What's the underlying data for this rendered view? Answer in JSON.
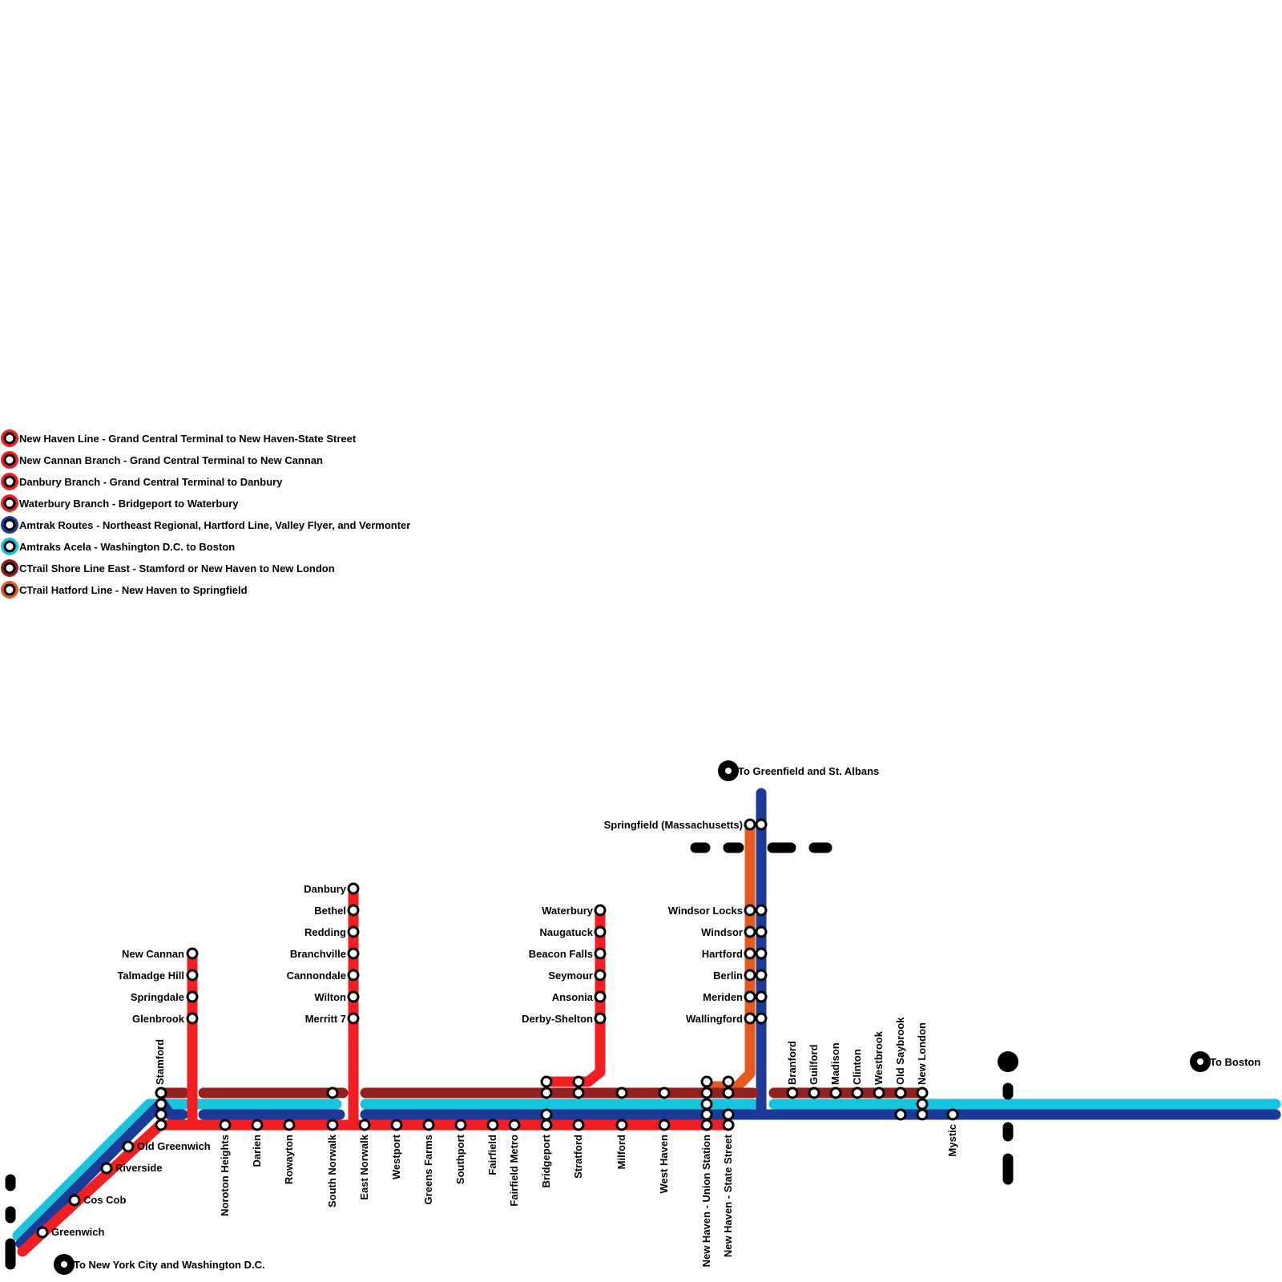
{
  "colors": {
    "new_haven_line": "#f21e22",
    "amtrak_routes": "#1b3a97",
    "amtrak_acela": "#1ac3dc",
    "shore_line_east": "#93201f",
    "hartford_line": "#e3591e",
    "marker": "#000000"
  },
  "legend": [
    {
      "label": "New Haven Line - Grand Central Terminal to New Haven-State Street",
      "color": "#f21e22"
    },
    {
      "label": "New Cannan Branch - Grand Central Terminal to New Cannan",
      "color": "#f21e22"
    },
    {
      "label": "Danbury Branch - Grand Central Terminal to Danbury",
      "color": "#f21e22"
    },
    {
      "label": "Waterbury Branch - Bridgeport to Waterbury",
      "color": "#f21e22"
    },
    {
      "label": "Amtrak Routes - Northeast Regional, Hartford Line, Valley Flyer, and Vermonter",
      "color": "#1b3a97"
    },
    {
      "label": "Amtraks Acela - Washington D.C. to Boston",
      "color": "#1ac3dc"
    },
    {
      "label": "CTrail Shore Line East - Stamford or New Haven to New London",
      "color": "#93201f"
    },
    {
      "label": "CTrail Hatford Line - New Haven to Springfield",
      "color": "#e3591e"
    }
  ],
  "terminals": {
    "south": "To New York City and Washington D.C.",
    "north": "To Greenfield and St. Albans",
    "east": "To Boston"
  },
  "stations": {
    "greenwich": "Greenwich",
    "cos_cob": "Cos Cob",
    "riverside": "Riverside",
    "old_greenwich": "Old Greenwich",
    "stamford": "Stamford",
    "noroton_heights": "Noroton Heights",
    "darien": "Darien",
    "rowayton": "Rowayton",
    "south_norwalk": "South Norwalk",
    "east_norwalk": "East Norwalk",
    "westport": "Westport",
    "greens_farms": "Greens Farms",
    "southport": "Southport",
    "fairfield": "Fairfield",
    "fairfield_metro": "Fairfield Metro",
    "bridgeport": "Bridgeport",
    "stratford": "Stratford",
    "milford": "Milford",
    "west_haven": "West Haven",
    "new_haven_union": "New Haven - Union Station",
    "new_haven_state": "New Haven - State Street",
    "branford": "Branford",
    "guilford": "Guilford",
    "madison": "Madison",
    "clinton": "Clinton",
    "westbrook": "Westbrook",
    "old_saybrook": "Old Saybrook",
    "new_london": "New London",
    "mystic": "Mystic",
    "new_cannan": "New Cannan",
    "talmadge_hill": "Talmadge Hill",
    "springdale": "Springdale",
    "glenbrook": "Glenbrook",
    "danbury": "Danbury",
    "bethel": "Bethel",
    "redding": "Redding",
    "branchville": "Branchville",
    "cannondale": "Cannondale",
    "wilton": "Wilton",
    "merritt_7": "Merritt 7",
    "waterbury": "Waterbury",
    "naugatuck": "Naugatuck",
    "beacon_falls": "Beacon Falls",
    "seymour": "Seymour",
    "ansonia": "Ansonia",
    "derby_shelton": "Derby-Shelton",
    "springfield": "Springfield (Massachusetts)",
    "windsor_locks": "Windsor Locks",
    "windsor": "Windsor",
    "hartford": "Hartford",
    "berlin": "Berlin",
    "meriden": "Meriden",
    "wallingford": "Wallingford"
  }
}
